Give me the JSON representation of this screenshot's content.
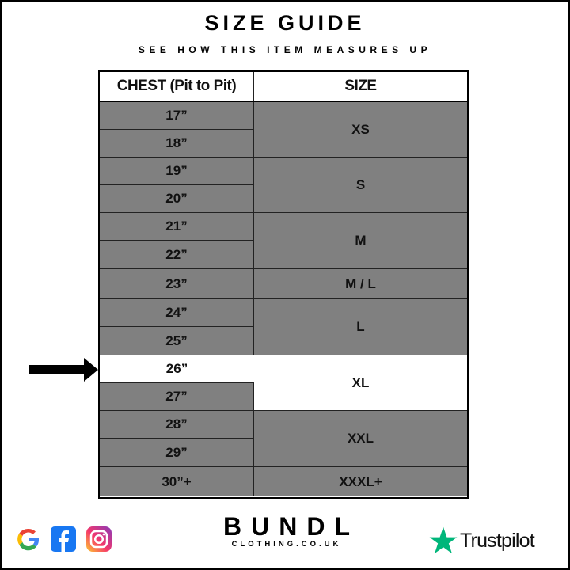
{
  "title": "SIZE GUIDE",
  "subtitle": "SEE HOW THIS ITEM MEASURES UP",
  "table": {
    "headers": [
      "CHEST (Pit to Pit)",
      "SIZE"
    ],
    "chest": [
      "17”",
      "18”",
      "19”",
      "20”",
      "21”",
      "22”",
      "23”",
      "24”",
      "25”",
      "26”",
      "27”",
      "28”",
      "29”",
      "30”+"
    ],
    "sizes": [
      "XS",
      "S",
      "M",
      "M / L",
      "L",
      "XL",
      "XXL",
      "XXXL+"
    ],
    "highlighted_chest": "26”",
    "highlighted_size": "XL"
  },
  "colors": {
    "cell": "#808080",
    "highlight": "#ffffff",
    "trustpilot": "#00b67a"
  },
  "footer": {
    "social_icons": [
      "google-icon",
      "facebook-icon",
      "instagram-icon"
    ],
    "brand": "BUNDL",
    "brand_sub": "CLOTHING.CO.UK",
    "trustpilot": "Trustpilot"
  }
}
